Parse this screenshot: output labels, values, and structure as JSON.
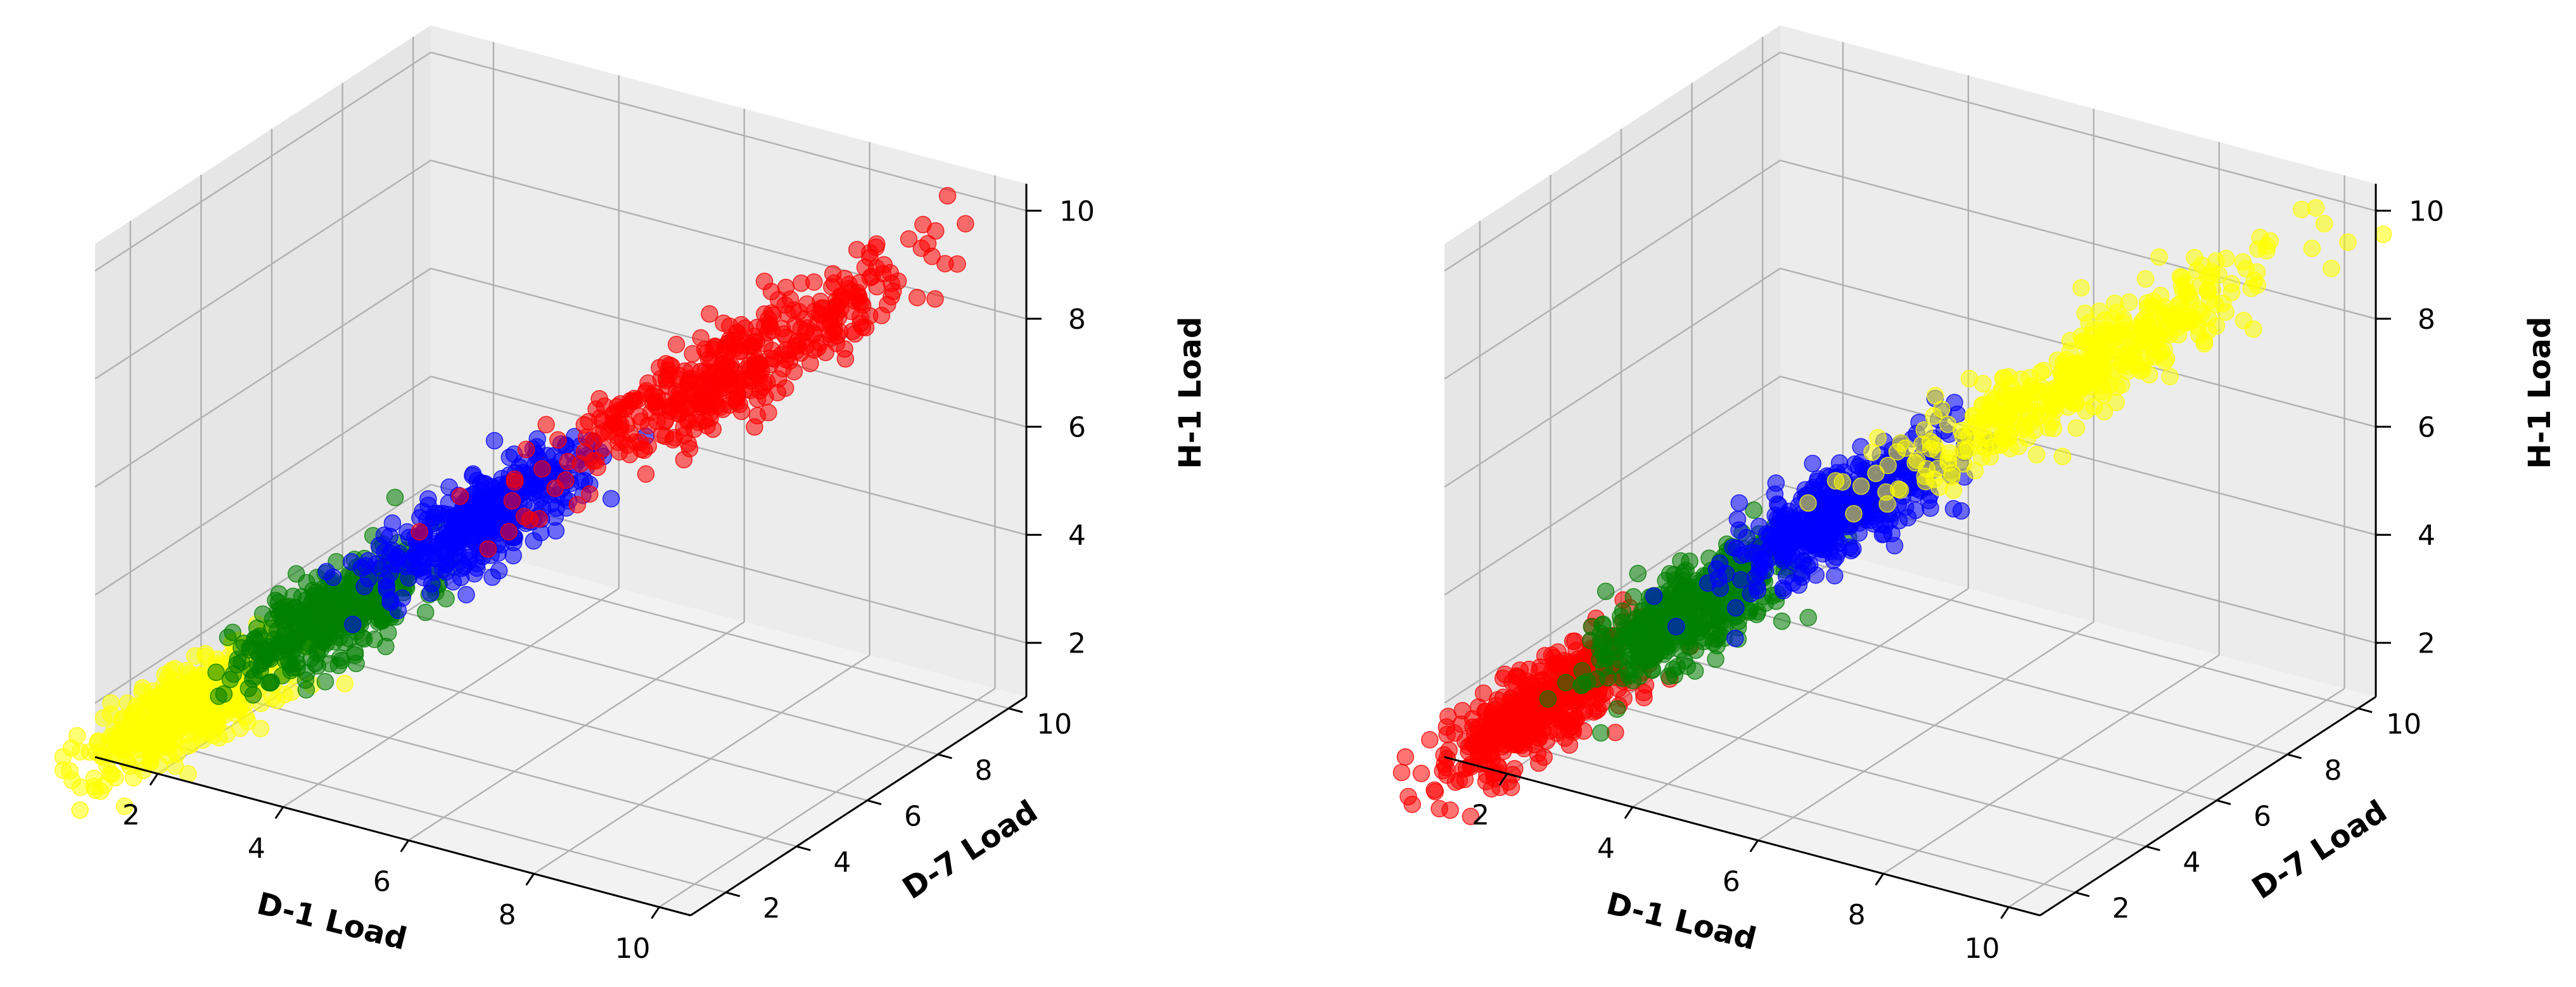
{
  "chart_data": [
    {
      "type": "scatter3d",
      "xlabel": "D-1 Load",
      "ylabel": "D-7 Load",
      "zlabel": "H-1 Load",
      "xlim": [
        1,
        10.5
      ],
      "ylim": [
        1,
        10.5
      ],
      "zlim": [
        1,
        10.5
      ],
      "xticks": [
        2,
        4,
        6,
        8,
        10
      ],
      "yticks": [
        2,
        4,
        6,
        8,
        10
      ],
      "zticks": [
        2,
        4,
        6,
        8,
        10
      ],
      "grid": true,
      "series": [
        {
          "color": "#ffff00",
          "center": [
            2.0,
            2.0,
            1.8
          ],
          "x_range": [
            1.0,
            3.2
          ]
        },
        {
          "color": "#008000",
          "center": [
            3.5,
            3.5,
            3.4
          ],
          "x_range": [
            2.6,
            4.6
          ]
        },
        {
          "color": "#0000ff",
          "center": [
            5.0,
            5.0,
            5.0
          ],
          "x_range": [
            4.0,
            6.3
          ]
        },
        {
          "color": "#ff0000",
          "center": [
            7.5,
            7.5,
            7.4
          ],
          "x_range": [
            5.8,
            10.0
          ]
        }
      ]
    },
    {
      "type": "scatter3d",
      "xlabel": "D-1 Load",
      "ylabel": "D-7 Load",
      "zlabel": "H-1 Load",
      "xlim": [
        1,
        10.5
      ],
      "ylim": [
        1,
        10.5
      ],
      "zlim": [
        1,
        10.5
      ],
      "xticks": [
        2,
        4,
        6,
        8,
        10
      ],
      "yticks": [
        2,
        4,
        6,
        8,
        10
      ],
      "zticks": [
        2,
        4,
        6,
        8,
        10
      ],
      "grid": true,
      "series": [
        {
          "color": "#ff0000",
          "center": [
            2.0,
            2.0,
            1.8
          ],
          "x_range": [
            1.0,
            3.2
          ]
        },
        {
          "color": "#008000",
          "center": [
            3.5,
            3.5,
            3.4
          ],
          "x_range": [
            2.6,
            4.6
          ]
        },
        {
          "color": "#0000ff",
          "center": [
            5.0,
            5.0,
            5.0
          ],
          "x_range": [
            4.0,
            6.3
          ]
        },
        {
          "color": "#ffff00",
          "center": [
            7.5,
            7.5,
            7.4
          ],
          "x_range": [
            5.8,
            10.0
          ]
        }
      ]
    }
  ]
}
